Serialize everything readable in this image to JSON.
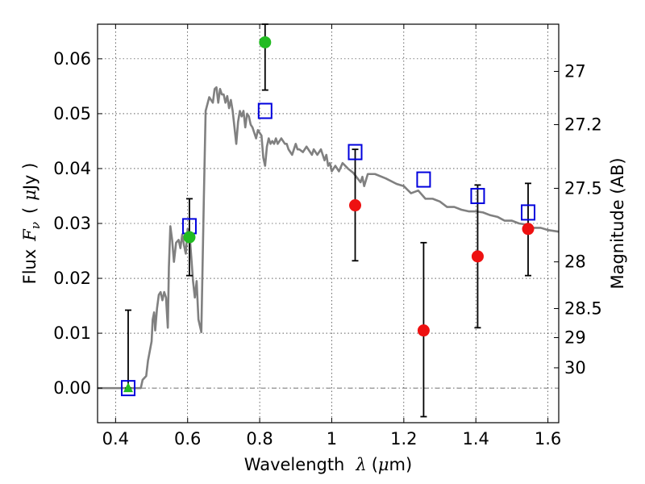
{
  "chart_data": {
    "type": "scatter",
    "xlabel": {
      "prefix": "Wavelength",
      "symbol": "λ",
      "open": "(",
      "unit_prefix": "μ",
      "unit": "m)"
    },
    "ylabel": {
      "prefix": "Flux",
      "symbol": "F",
      "subscript": "ν",
      "open": "(",
      "unit_prefix": "μ",
      "unit": "Jy )"
    },
    "y2label": "Magnitude (AB)",
    "xlim": [
      0.35,
      1.63
    ],
    "ylim": [
      -0.0063,
      0.0663
    ],
    "grid": true,
    "x_ticks": [
      0.4,
      0.6,
      0.8,
      1.0,
      1.2,
      1.4,
      1.6
    ],
    "x_tick_labels": [
      "0.4",
      "0.6",
      "0.8",
      "1",
      "1.2",
      "1.4",
      "1.6"
    ],
    "y_ticks": [
      0.0,
      0.01,
      0.02,
      0.03,
      0.04,
      0.05,
      0.06
    ],
    "y_tick_labels": [
      "0.00",
      "0.01",
      "0.02",
      "0.03",
      "0.04",
      "0.05",
      "0.06"
    ],
    "y2_ticks": [
      {
        "label": "27",
        "flux": 0.0577
      },
      {
        "label": "27.2",
        "flux": 0.048
      },
      {
        "label": "27.5",
        "flux": 0.0364
      },
      {
        "label": "28",
        "flux": 0.023
      },
      {
        "label": "28.5",
        "flux": 0.0145
      },
      {
        "label": "29",
        "flux": 0.0092
      },
      {
        "label": "30",
        "flux": 0.0037
      }
    ],
    "series": [
      {
        "kind": "line",
        "color": "#808080",
        "points": [
          [
            0.35,
            0.0
          ],
          [
            0.47,
            0.0
          ],
          [
            0.475,
            0.0015
          ],
          [
            0.485,
            0.0022
          ],
          [
            0.49,
            0.005
          ],
          [
            0.5,
            0.0085
          ],
          [
            0.503,
            0.0125
          ],
          [
            0.507,
            0.0138
          ],
          [
            0.51,
            0.0105
          ],
          [
            0.515,
            0.0145
          ],
          [
            0.52,
            0.017
          ],
          [
            0.525,
            0.0175
          ],
          [
            0.53,
            0.016
          ],
          [
            0.535,
            0.0175
          ],
          [
            0.54,
            0.0165
          ],
          [
            0.545,
            0.011
          ],
          [
            0.548,
            0.022
          ],
          [
            0.552,
            0.0295
          ],
          [
            0.557,
            0.027
          ],
          [
            0.562,
            0.023
          ],
          [
            0.568,
            0.0265
          ],
          [
            0.575,
            0.027
          ],
          [
            0.58,
            0.0255
          ],
          [
            0.585,
            0.028
          ],
          [
            0.59,
            0.026
          ],
          [
            0.595,
            0.0245
          ],
          [
            0.6,
            0.029
          ],
          [
            0.605,
            0.0285
          ],
          [
            0.61,
            0.024
          ],
          [
            0.615,
            0.0195
          ],
          [
            0.62,
            0.0165
          ],
          [
            0.625,
            0.0195
          ],
          [
            0.63,
            0.0125
          ],
          [
            0.638,
            0.0102
          ],
          [
            0.645,
            0.0345
          ],
          [
            0.65,
            0.0505
          ],
          [
            0.66,
            0.053
          ],
          [
            0.67,
            0.052
          ],
          [
            0.675,
            0.0545
          ],
          [
            0.68,
            0.0548
          ],
          [
            0.685,
            0.052
          ],
          [
            0.69,
            0.0545
          ],
          [
            0.695,
            0.0535
          ],
          [
            0.7,
            0.0535
          ],
          [
            0.705,
            0.052
          ],
          [
            0.71,
            0.0532
          ],
          [
            0.715,
            0.051
          ],
          [
            0.72,
            0.0525
          ],
          [
            0.725,
            0.0505
          ],
          [
            0.73,
            0.0475
          ],
          [
            0.735,
            0.0445
          ],
          [
            0.74,
            0.0485
          ],
          [
            0.745,
            0.0505
          ],
          [
            0.75,
            0.0495
          ],
          [
            0.755,
            0.0505
          ],
          [
            0.76,
            0.0475
          ],
          [
            0.765,
            0.05
          ],
          [
            0.77,
            0.0495
          ],
          [
            0.775,
            0.048
          ],
          [
            0.78,
            0.0475
          ],
          [
            0.785,
            0.0465
          ],
          [
            0.79,
            0.0455
          ],
          [
            0.795,
            0.047
          ],
          [
            0.8,
            0.0465
          ],
          [
            0.805,
            0.046
          ],
          [
            0.81,
            0.042
          ],
          [
            0.815,
            0.0405
          ],
          [
            0.82,
            0.044
          ],
          [
            0.825,
            0.0455
          ],
          [
            0.83,
            0.0445
          ],
          [
            0.835,
            0.045
          ],
          [
            0.84,
            0.0445
          ],
          [
            0.845,
            0.0455
          ],
          [
            0.85,
            0.0445
          ],
          [
            0.86,
            0.0455
          ],
          [
            0.87,
            0.0445
          ],
          [
            0.875,
            0.0445
          ],
          [
            0.88,
            0.0435
          ],
          [
            0.89,
            0.0425
          ],
          [
            0.9,
            0.0445
          ],
          [
            0.905,
            0.0435
          ],
          [
            0.91,
            0.0435
          ],
          [
            0.92,
            0.043
          ],
          [
            0.93,
            0.044
          ],
          [
            0.94,
            0.043
          ],
          [
            0.945,
            0.0425
          ],
          [
            0.95,
            0.0435
          ],
          [
            0.96,
            0.0425
          ],
          [
            0.97,
            0.0435
          ],
          [
            0.98,
            0.0415
          ],
          [
            0.985,
            0.0425
          ],
          [
            0.99,
            0.0405
          ],
          [
            0.995,
            0.041
          ],
          [
            1.0,
            0.0395
          ],
          [
            1.01,
            0.0405
          ],
          [
            1.02,
            0.0395
          ],
          [
            1.03,
            0.041
          ],
          [
            1.045,
            0.04
          ],
          [
            1.06,
            0.0392
          ],
          [
            1.08,
            0.0375
          ],
          [
            1.085,
            0.0385
          ],
          [
            1.09,
            0.0368
          ],
          [
            1.1,
            0.039
          ],
          [
            1.12,
            0.039
          ],
          [
            1.15,
            0.0382
          ],
          [
            1.18,
            0.0372
          ],
          [
            1.2,
            0.0368
          ],
          [
            1.22,
            0.0355
          ],
          [
            1.24,
            0.036
          ],
          [
            1.26,
            0.0345
          ],
          [
            1.28,
            0.0345
          ],
          [
            1.3,
            0.034
          ],
          [
            1.32,
            0.033
          ],
          [
            1.34,
            0.033
          ],
          [
            1.36,
            0.0325
          ],
          [
            1.38,
            0.0322
          ],
          [
            1.4,
            0.0322
          ],
          [
            1.42,
            0.032
          ],
          [
            1.44,
            0.0315
          ],
          [
            1.46,
            0.0312
          ],
          [
            1.48,
            0.0305
          ],
          [
            1.5,
            0.0305
          ],
          [
            1.52,
            0.03
          ],
          [
            1.54,
            0.0298
          ],
          [
            1.56,
            0.0292
          ],
          [
            1.58,
            0.0292
          ],
          [
            1.6,
            0.0288
          ],
          [
            1.63,
            0.0285
          ]
        ]
      },
      {
        "kind": "markers",
        "marker": "square-open",
        "color": "#0000dd",
        "points": [
          [
            0.435,
            0.0
          ],
          [
            0.605,
            0.0295
          ],
          [
            0.815,
            0.0505
          ],
          [
            1.065,
            0.043
          ],
          [
            1.255,
            0.038
          ],
          [
            1.405,
            0.035
          ],
          [
            1.545,
            0.032
          ]
        ]
      },
      {
        "kind": "markers",
        "marker": "circle",
        "color": "#22bb22",
        "points": [
          [
            0.605,
            0.0275
          ],
          [
            0.815,
            0.063
          ]
        ]
      },
      {
        "kind": "markers",
        "marker": "triangle",
        "color": "#22bb22",
        "points": [
          [
            0.435,
            0.0
          ]
        ]
      },
      {
        "kind": "markers",
        "marker": "circle",
        "color": "#ee1111",
        "points": [
          [
            1.065,
            0.0333
          ],
          [
            1.255,
            0.0105
          ],
          [
            1.405,
            0.024
          ],
          [
            1.545,
            0.029
          ]
        ]
      }
    ],
    "errorbars": [
      {
        "x": 0.435,
        "low": 0.0,
        "high": 0.0142
      },
      {
        "x": 0.605,
        "low": 0.0205,
        "high": 0.0345
      },
      {
        "x": 0.815,
        "low": 0.0543,
        "high": 0.0663
      },
      {
        "x": 1.065,
        "low": 0.0232,
        "high": 0.0435
      },
      {
        "x": 1.255,
        "low": -0.0052,
        "high": 0.0265
      },
      {
        "x": 1.405,
        "low": 0.011,
        "high": 0.037
      },
      {
        "x": 1.545,
        "low": 0.0205,
        "high": 0.0373
      }
    ]
  }
}
